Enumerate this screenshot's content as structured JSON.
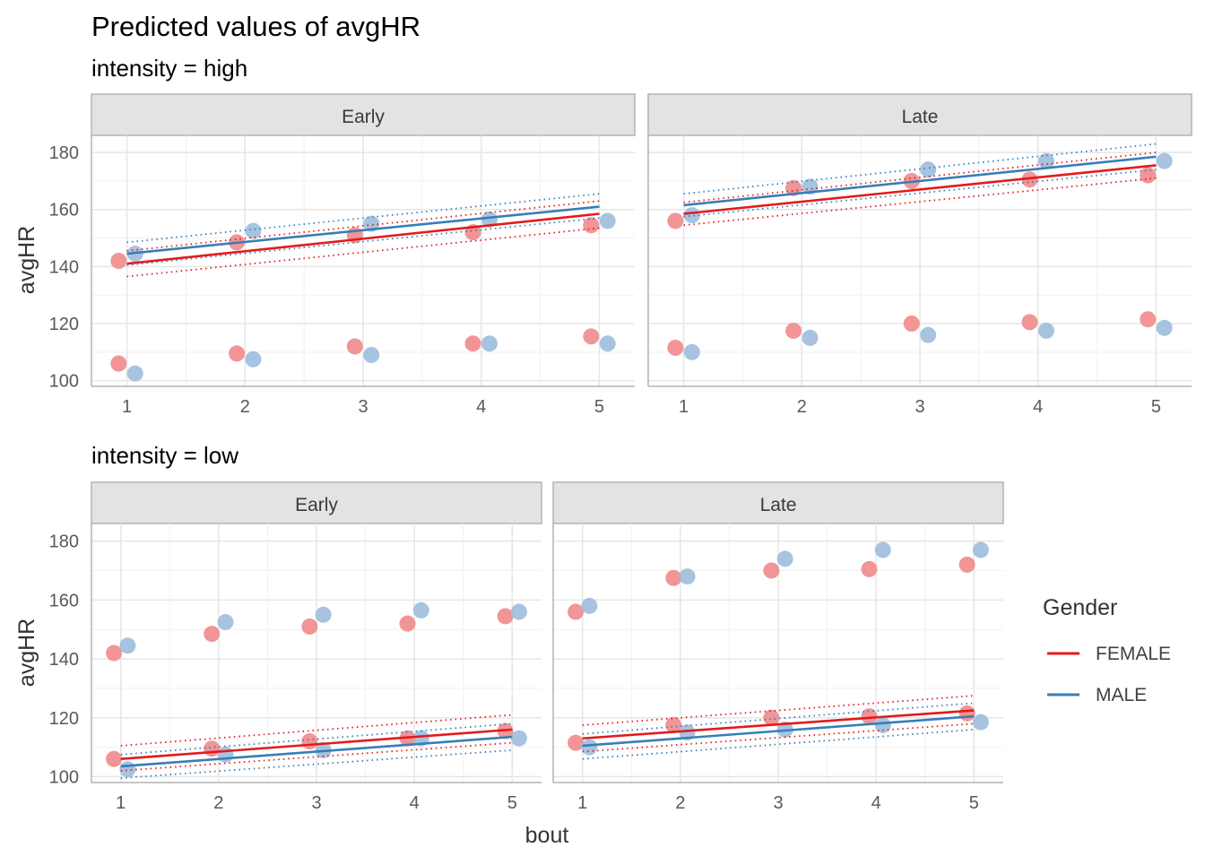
{
  "title": "Predicted values of avgHR",
  "legend": {
    "title": "Gender",
    "items": [
      {
        "label": "FEMALE",
        "color": "#e41a1c"
      },
      {
        "label": "MALE",
        "color": "#377eb8"
      }
    ]
  },
  "chart_data": {
    "type": "scatter",
    "title": "Predicted values of avgHR",
    "xlabel": "bout",
    "ylabel": "avgHR",
    "x_ticks": [
      1,
      2,
      3,
      4,
      5
    ],
    "y_ticks": [
      100,
      120,
      140,
      160,
      180
    ],
    "xlim": [
      0.7,
      5.3
    ],
    "ylim": [
      98,
      186
    ],
    "grid": true,
    "legend_position": "right",
    "series_colors": {
      "FEMALE": "#e41a1c",
      "MALE": "#377eb8"
    },
    "point_colors": {
      "FEMALE": "#f08a8c",
      "MALE": "#9dbddb"
    },
    "observed_high_group": {
      "Early": {
        "FEMALE": [
          [
            1,
            142
          ],
          [
            2,
            148.5
          ],
          [
            3,
            151
          ],
          [
            4,
            152
          ],
          [
            5,
            154.5
          ]
        ],
        "MALE": [
          [
            1,
            144.5
          ],
          [
            2,
            152.5
          ],
          [
            3,
            155
          ],
          [
            4,
            156.5
          ],
          [
            5,
            156
          ]
        ]
      },
      "Late": {
        "FEMALE": [
          [
            1,
            156
          ],
          [
            2,
            167.5
          ],
          [
            3,
            170
          ],
          [
            4,
            170.5
          ],
          [
            5,
            172
          ]
        ],
        "MALE": [
          [
            1,
            158
          ],
          [
            2,
            168
          ],
          [
            3,
            174
          ],
          [
            4,
            177
          ],
          [
            5,
            177
          ]
        ]
      }
    },
    "observed_low_group": {
      "Early": {
        "FEMALE": [
          [
            1,
            106
          ],
          [
            2,
            109.5
          ],
          [
            3,
            112
          ],
          [
            4,
            113
          ],
          [
            5,
            115.5
          ]
        ],
        "MALE": [
          [
            1,
            102.5
          ],
          [
            2,
            107.5
          ],
          [
            3,
            109
          ],
          [
            4,
            113
          ],
          [
            5,
            113
          ]
        ]
      },
      "Late": {
        "FEMALE": [
          [
            1,
            111.5
          ],
          [
            2,
            117.5
          ],
          [
            3,
            120
          ],
          [
            4,
            120.5
          ],
          [
            5,
            121.5
          ]
        ],
        "MALE": [
          [
            1,
            110
          ],
          [
            2,
            115
          ],
          [
            3,
            116
          ],
          [
            4,
            117.5
          ],
          [
            5,
            118.5
          ]
        ]
      }
    },
    "panels": [
      {
        "intensity_label": "intensity = high",
        "facets": [
          {
            "label": "Early",
            "points": "observed",
            "fits": [
              {
                "name": "FEMALE",
                "y1": 141,
                "y5": 158.5,
                "lo1": 136.5,
                "lo5": 153.5,
                "hi1": 145.5,
                "hi5": 163
              },
              {
                "name": "MALE",
                "y1": 144.5,
                "y5": 161,
                "lo1": 140.5,
                "lo5": 157,
                "hi1": 148.5,
                "hi5": 165.5
              }
            ]
          },
          {
            "label": "Late",
            "points": "observed",
            "fits": [
              {
                "name": "FEMALE",
                "y1": 158.5,
                "y5": 175.5,
                "lo1": 154.5,
                "lo5": 171,
                "hi1": 162.5,
                "hi5": 180
              },
              {
                "name": "MALE",
                "y1": 161.5,
                "y5": 178.5,
                "lo1": 157.5,
                "lo5": 174,
                "hi1": 165.5,
                "hi5": 183
              }
            ]
          }
        ]
      },
      {
        "intensity_label": "intensity = low",
        "facets": [
          {
            "label": "Early",
            "points": "observed",
            "fits": [
              {
                "name": "FEMALE",
                "y1": 106,
                "y5": 116,
                "lo1": 102,
                "lo5": 111.5,
                "hi1": 110.5,
                "hi5": 121
              },
              {
                "name": "MALE",
                "y1": 103.5,
                "y5": 113.5,
                "lo1": 99.5,
                "lo5": 109,
                "hi1": 107.5,
                "hi5": 118
              }
            ]
          },
          {
            "label": "Late",
            "points": "observed",
            "fits": [
              {
                "name": "FEMALE",
                "y1": 113,
                "y5": 122.5,
                "lo1": 108.5,
                "lo5": 118,
                "hi1": 117.5,
                "hi5": 127.5
              },
              {
                "name": "MALE",
                "y1": 110.5,
                "y5": 120.5,
                "lo1": 106,
                "lo5": 116,
                "hi1": 114.5,
                "hi5": 125
              }
            ]
          }
        ]
      }
    ]
  }
}
